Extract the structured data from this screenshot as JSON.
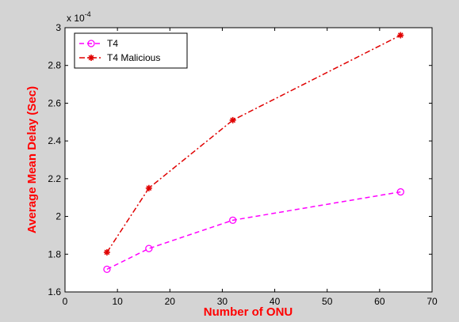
{
  "chart_data": {
    "type": "line",
    "title": "",
    "xlabel": "Number of ONU",
    "ylabel": "Average Mean Delay (Sec)",
    "y_multiplier_label": "x 10",
    "y_multiplier_exp": "-4",
    "xlim": [
      0,
      70
    ],
    "ylim": [
      1.6,
      3.0
    ],
    "xticks": [
      0,
      10,
      20,
      30,
      40,
      50,
      60,
      70
    ],
    "yticks": [
      "1.6",
      "1.8",
      "2",
      "2.2",
      "2.4",
      "2.6",
      "2.8",
      "3"
    ],
    "x": [
      8,
      16,
      32,
      64
    ],
    "grid": false,
    "legend_position": "top-left",
    "series": [
      {
        "name": "T4",
        "values": [
          1.72,
          1.83,
          1.98,
          2.13
        ],
        "color": "#ff00ff",
        "marker": "circle",
        "line_style": "dashed"
      },
      {
        "name": "T4 Malicious",
        "values": [
          1.81,
          2.15,
          2.51,
          2.96
        ],
        "color": "#e00000",
        "marker": "star",
        "line_style": "dash-dot"
      }
    ],
    "label_color": "#ff0000"
  }
}
